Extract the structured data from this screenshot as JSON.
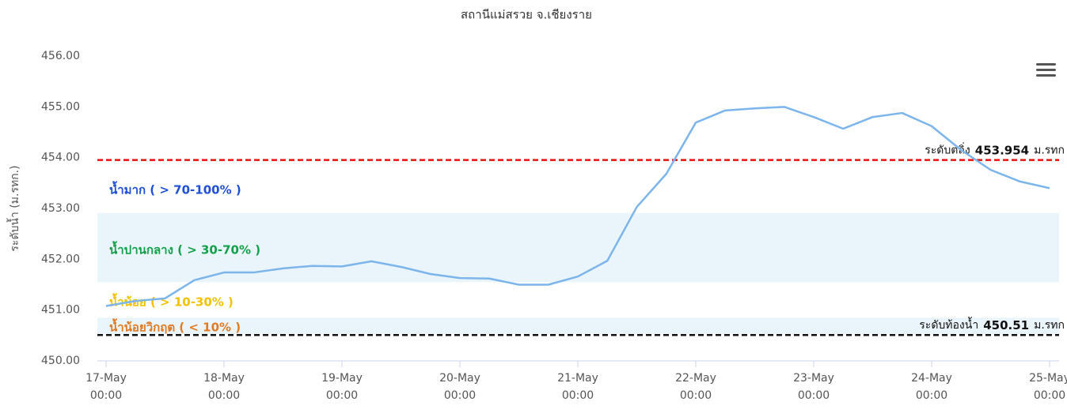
{
  "chart_data": {
    "type": "line",
    "title": "สถานีแม่สรวย จ.เชียงราย",
    "y_axis_label": "ระดับน้ำ (ม.รทก.)",
    "x": [
      "17-May 00:00",
      "17-May 06:00",
      "17-May 12:00",
      "17-May 18:00",
      "18-May 00:00",
      "18-May 06:00",
      "18-May 12:00",
      "18-May 18:00",
      "19-May 00:00",
      "19-May 06:00",
      "19-May 12:00",
      "19-May 18:00",
      "20-May 00:00",
      "20-May 06:00",
      "20-May 12:00",
      "20-May 18:00",
      "21-May 00:00",
      "21-May 06:00",
      "21-May 12:00",
      "21-May 18:00",
      "22-May 00:00",
      "22-May 06:00",
      "22-May 12:00",
      "22-May 18:00",
      "23-May 00:00",
      "23-May 06:00",
      "23-May 12:00",
      "23-May 18:00",
      "24-May 00:00",
      "24-May 06:00",
      "24-May 12:00",
      "24-May 18:00",
      "25-May 00:00"
    ],
    "values": [
      451.08,
      451.18,
      451.23,
      451.59,
      451.74,
      451.74,
      451.82,
      451.87,
      451.86,
      451.96,
      451.85,
      451.71,
      451.63,
      451.62,
      451.5,
      451.5,
      451.66,
      451.97,
      453.03,
      453.68,
      454.69,
      454.93,
      454.97,
      455.0,
      454.8,
      454.57,
      454.8,
      454.88,
      454.62,
      454.15,
      453.76,
      453.53,
      453.4
    ],
    "color": "#7cb5ec",
    "ylim": [
      450,
      456
    ],
    "yticks": [
      {
        "value": 450,
        "label": "450.00"
      },
      {
        "value": 451,
        "label": "451.00"
      },
      {
        "value": 452,
        "label": "452.00"
      },
      {
        "value": 453,
        "label": "453.00"
      },
      {
        "value": 454,
        "label": "454.00"
      },
      {
        "value": 455,
        "label": "455.00"
      },
      {
        "value": 456,
        "label": "456.00"
      }
    ],
    "xticks": [
      "17-May 00:00",
      "18-May 00:00",
      "19-May 00:00",
      "20-May 00:00",
      "21-May 00:00",
      "22-May 00:00",
      "23-May 00:00",
      "24-May 00:00",
      "25-May 00:00"
    ],
    "grid": false,
    "bands": [
      {
        "from": 451.55,
        "to": 452.91,
        "color": "#eaf4fb"
      },
      {
        "from": 450.52,
        "to": 450.85,
        "color": "#eaf4fb"
      }
    ],
    "zone_labels": [
      {
        "text": "น้ำมาก ( > 70-100% )",
        "color": "#1f4fd8"
      },
      {
        "text": "น้ำปานกลาง ( > 30-70% )",
        "color": "#13a04a"
      },
      {
        "text": "น้ำน้อย ( > 10-30% )",
        "color": "#f2c200"
      },
      {
        "text": "น้ำน้อยวิกฤต ( < 10% )",
        "color": "#e07b24"
      }
    ],
    "plot_lines": [
      {
        "label": "ระดับตลิ่ง",
        "value": 453.954,
        "unit": "ม.รทก",
        "color": "#e8120c"
      },
      {
        "label": "ระดับท้องน้ำ",
        "value": 450.51,
        "unit": "ม.รทก",
        "color": "#111111"
      }
    ]
  }
}
